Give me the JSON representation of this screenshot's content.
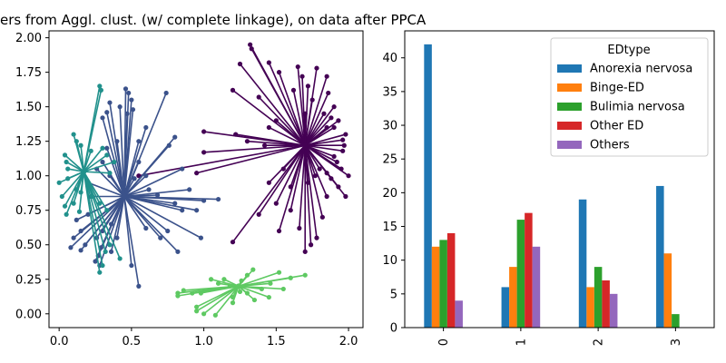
{
  "chart_data": [
    {
      "type": "scatter",
      "subtype": "cluster-star",
      "title": "ers from Aggl. clust. (w/ complete linkage), on data after PPCA",
      "xlabel": "",
      "ylabel": "",
      "xlim": [
        -0.07,
        2.1
      ],
      "ylim": [
        -0.1,
        2.05
      ],
      "xticks": [
        "0.0",
        "0.5",
        "1.0",
        "1.5",
        "2.0"
      ],
      "yticks": [
        "0.00",
        "0.25",
        "0.50",
        "0.75",
        "1.00",
        "1.25",
        "1.50",
        "1.75",
        "2.00"
      ],
      "grid": false,
      "clusters": [
        {
          "color": "#440154",
          "center": [
            1.7,
            1.22
          ],
          "points": [
            [
              1.32,
              1.95
            ],
            [
              1.33,
              1.92
            ],
            [
              1.25,
              1.81
            ],
            [
              1.45,
              1.82
            ],
            [
              1.52,
              1.75
            ],
            [
              1.65,
              1.79
            ],
            [
              1.68,
              1.72
            ],
            [
              1.78,
              1.78
            ],
            [
              1.85,
              1.72
            ],
            [
              1.2,
              1.62
            ],
            [
              1.38,
              1.57
            ],
            [
              1.86,
              1.6
            ],
            [
              1.9,
              1.5
            ],
            [
              1.93,
              1.4
            ],
            [
              1.98,
              1.3
            ],
            [
              1.97,
              1.22
            ],
            [
              1.9,
              1.14
            ],
            [
              1.95,
              1.05
            ],
            [
              2.0,
              1.0
            ],
            [
              1.88,
              0.98
            ],
            [
              1.93,
              0.92
            ],
            [
              1.98,
              0.85
            ],
            [
              1.0,
              1.32
            ],
            [
              1.0,
              1.17
            ],
            [
              0.95,
              1.02
            ],
            [
              0.55,
              1.0
            ],
            [
              1.55,
              1.05
            ],
            [
              1.5,
              0.8
            ],
            [
              1.52,
              0.6
            ],
            [
              1.2,
              0.52
            ],
            [
              1.38,
              0.72
            ],
            [
              1.6,
              0.92
            ],
            [
              1.7,
              0.45
            ],
            [
              1.74,
              0.5
            ],
            [
              1.78,
              0.55
            ],
            [
              1.66,
              0.62
            ],
            [
              1.82,
              0.7
            ],
            [
              1.85,
              0.85
            ],
            [
              1.45,
              0.95
            ],
            [
              1.6,
              0.75
            ],
            [
              1.83,
              1.45
            ],
            [
              1.85,
              1.35
            ],
            [
              1.8,
              1.05
            ],
            [
              1.92,
              1.1
            ],
            [
              1.96,
              1.18
            ],
            [
              1.96,
              1.26
            ],
            [
              1.9,
              1.35
            ],
            [
              1.88,
              1.42
            ],
            [
              1.75,
              1.55
            ],
            [
              1.72,
              1.65
            ],
            [
              1.62,
              1.62
            ],
            [
              1.7,
              1.45
            ],
            [
              1.22,
              1.3
            ],
            [
              1.3,
              1.25
            ],
            [
              1.45,
              1.35
            ],
            [
              1.42,
              1.22
            ],
            [
              1.5,
              1.4
            ],
            [
              1.72,
              0.95
            ],
            [
              1.77,
              1.0
            ],
            [
              1.85,
              1.02
            ]
          ]
        },
        {
          "color": "#3b528b",
          "center": [
            0.45,
            0.85
          ],
          "points": [
            [
              0.46,
              1.63
            ],
            [
              0.48,
              1.6
            ],
            [
              0.5,
              1.55
            ],
            [
              0.51,
              1.48
            ],
            [
              0.47,
              1.45
            ],
            [
              0.42,
              1.5
            ],
            [
              0.35,
              1.53
            ],
            [
              0.33,
              1.46
            ],
            [
              0.3,
              1.42
            ],
            [
              0.33,
              1.2
            ],
            [
              0.6,
              1.35
            ],
            [
              0.55,
              1.25
            ],
            [
              0.74,
              1.6
            ],
            [
              0.55,
              1.1
            ],
            [
              0.6,
              1.0
            ],
            [
              0.52,
              0.98
            ],
            [
              0.76,
              1.22
            ],
            [
              0.8,
              1.28
            ],
            [
              0.85,
              1.05
            ],
            [
              1.1,
              0.83
            ],
            [
              1.0,
              0.82
            ],
            [
              0.8,
              0.8
            ],
            [
              0.9,
              0.9
            ],
            [
              0.95,
              0.75
            ],
            [
              0.22,
              0.85
            ],
            [
              0.12,
              0.68
            ],
            [
              0.2,
              0.72
            ],
            [
              0.15,
              0.6
            ],
            [
              0.1,
              0.55
            ],
            [
              0.08,
              0.48
            ],
            [
              0.15,
              0.46
            ],
            [
              0.18,
              0.5
            ],
            [
              0.26,
              0.55
            ],
            [
              0.3,
              0.6
            ],
            [
              0.29,
              0.48
            ],
            [
              0.27,
              0.42
            ],
            [
              0.25,
              0.38
            ],
            [
              0.28,
              0.35
            ],
            [
              0.36,
              0.45
            ],
            [
              0.4,
              0.55
            ],
            [
              0.36,
              0.65
            ],
            [
              0.55,
              0.2
            ],
            [
              0.5,
              0.35
            ],
            [
              0.6,
              0.62
            ],
            [
              0.7,
              0.55
            ],
            [
              0.75,
              0.6
            ],
            [
              0.85,
              0.75
            ],
            [
              0.98,
              0.55
            ],
            [
              0.82,
              0.45
            ],
            [
              0.62,
              0.9
            ],
            [
              0.68,
              0.86
            ],
            [
              0.3,
              1.1
            ],
            [
              0.26,
              1.05
            ],
            [
              0.35,
              1.0
            ],
            [
              0.4,
              1.25
            ],
            [
              0.2,
              0.95
            ]
          ]
        },
        {
          "color": "#21918c",
          "center": [
            0.17,
            1.03
          ],
          "points": [
            [
              0.28,
              1.65
            ],
            [
              0.29,
              1.62
            ],
            [
              0.1,
              1.3
            ],
            [
              0.12,
              1.25
            ],
            [
              0.04,
              1.15
            ],
            [
              0.05,
              1.1
            ],
            [
              0.06,
              1.05
            ],
            [
              0.0,
              0.95
            ],
            [
              0.02,
              0.85
            ],
            [
              0.04,
              0.78
            ],
            [
              0.05,
              0.72
            ],
            [
              0.12,
              0.9
            ],
            [
              0.15,
              0.88
            ],
            [
              0.23,
              0.85
            ],
            [
              0.28,
              0.8
            ],
            [
              0.33,
              0.75
            ],
            [
              0.35,
              0.5
            ],
            [
              0.32,
              0.45
            ],
            [
              0.3,
              0.35
            ],
            [
              0.28,
              0.3
            ],
            [
              0.42,
              0.4
            ],
            [
              0.3,
              1.2
            ],
            [
              0.33,
              1.15
            ],
            [
              0.38,
              1.1
            ],
            [
              0.35,
              1.02
            ],
            [
              0.22,
              1.18
            ],
            [
              0.15,
              1.22
            ],
            [
              0.06,
              0.98
            ],
            [
              0.1,
              0.8
            ],
            [
              0.14,
              0.74
            ]
          ]
        },
        {
          "color": "#5ec962",
          "center": [
            1.24,
            0.2
          ],
          "points": [
            [
              1.34,
              0.32
            ],
            [
              1.3,
              0.28
            ],
            [
              1.26,
              0.24
            ],
            [
              1.52,
              0.3
            ],
            [
              1.6,
              0.26
            ],
            [
              1.7,
              0.28
            ],
            [
              1.46,
              0.22
            ],
            [
              1.4,
              0.18
            ],
            [
              1.45,
              0.12
            ],
            [
              1.55,
              0.18
            ],
            [
              1.35,
              0.1
            ],
            [
              1.2,
              0.12
            ],
            [
              1.18,
              0.2
            ],
            [
              1.1,
              0.22
            ],
            [
              1.05,
              0.25
            ],
            [
              0.98,
              0.15
            ],
            [
              0.86,
              0.17
            ],
            [
              0.82,
              0.15
            ],
            [
              0.82,
              0.13
            ],
            [
              0.92,
              0.15
            ],
            [
              0.95,
              0.05
            ],
            [
              0.95,
              0.02
            ],
            [
              1.0,
              0.0
            ],
            [
              1.08,
              -0.01
            ],
            [
              1.2,
              0.08
            ],
            [
              1.3,
              0.15
            ],
            [
              1.14,
              0.25
            ],
            [
              1.25,
              0.16
            ]
          ]
        }
      ]
    },
    {
      "type": "bar",
      "categories": [
        "0",
        "1",
        "2",
        "3"
      ],
      "ylim": [
        0,
        44
      ],
      "yticks": [
        "0",
        "5",
        "10",
        "15",
        "20",
        "25",
        "30",
        "35",
        "40"
      ],
      "xlabel": "",
      "ylabel": "",
      "grid": false,
      "legend": {
        "title": "EDtype",
        "placement": "upper-right"
      },
      "series": [
        {
          "name": "Anorexia nervosa",
          "color": "#1f77b4",
          "values": [
            42,
            6,
            19,
            21
          ]
        },
        {
          "name": "Binge-ED",
          "color": "#ff7f0e",
          "values": [
            12,
            9,
            6,
            11
          ]
        },
        {
          "name": "Bulimia nervosa",
          "color": "#2ca02c",
          "values": [
            13,
            16,
            9,
            2
          ]
        },
        {
          "name": "Other ED",
          "color": "#d62728",
          "values": [
            14,
            17,
            7,
            0
          ]
        },
        {
          "name": "Others",
          "color": "#9467bd",
          "values": [
            4,
            12,
            5,
            0
          ]
        }
      ]
    }
  ]
}
